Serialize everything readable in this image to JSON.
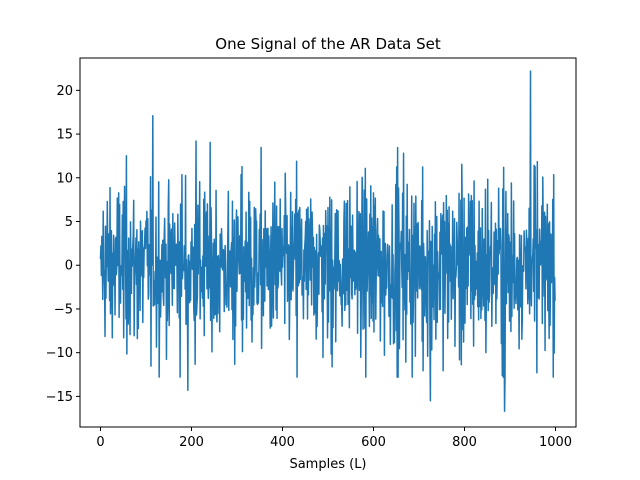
{
  "chart_data": {
    "type": "line",
    "title": "One Signal of the AR Data Set",
    "xlabel": "Samples (L)",
    "ylabel": "",
    "xlim": [
      -45,
      1045
    ],
    "ylim": [
      -18.5,
      23.7
    ],
    "xticks": [
      0,
      200,
      400,
      600,
      800,
      1000
    ],
    "yticks": [
      -15,
      -10,
      -5,
      0,
      5,
      10,
      15,
      20
    ],
    "grid": false,
    "legend": "none",
    "color": "#1f77b4",
    "series": [
      {
        "n_points": 1000,
        "x_start": 0,
        "x_end": 999,
        "y_range": [
          -16.7,
          22.2
        ],
        "notable_points": [
          {
            "x": 115,
            "y": 17.1
          },
          {
            "x": 192,
            "y": -14.3
          },
          {
            "x": 210,
            "y": 14.2
          },
          {
            "x": 725,
            "y": -15.5
          },
          {
            "x": 888,
            "y": -16.7
          },
          {
            "x": 945,
            "y": 22.2
          }
        ]
      }
    ]
  }
}
